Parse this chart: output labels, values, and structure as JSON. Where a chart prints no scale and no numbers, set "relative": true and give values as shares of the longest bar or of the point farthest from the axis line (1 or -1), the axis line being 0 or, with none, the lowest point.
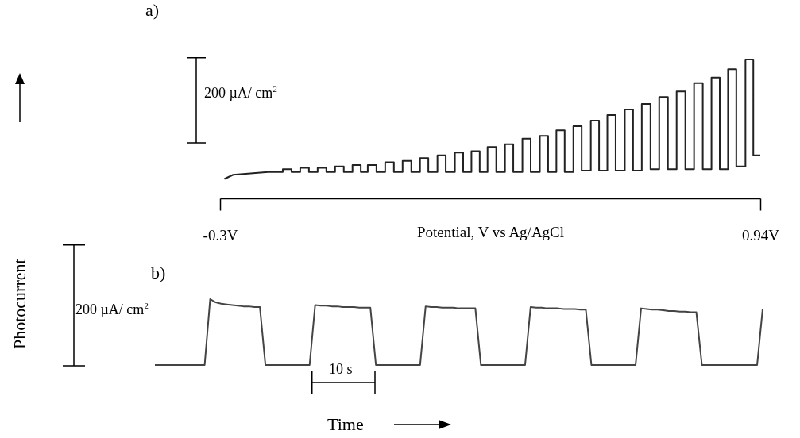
{
  "chart_data": [
    {
      "type": "line",
      "title": "a)",
      "xlabel": "Potential, V vs Ag/AgCl",
      "relative": true,
      "tick_labels": "x",
      "xlim": [
        -0.3,
        0.94
      ],
      "xticks": [
        {
          "value": -0.3,
          "label": "-0.3V"
        },
        {
          "value": 0.94,
          "label": "0.94V"
        }
      ],
      "annotations": [
        "200 µA/ cm$^{2}$"
      ],
      "x": [
        -0.29,
        -0.27,
        -0.23,
        -0.19,
        -0.156,
        -0.156,
        -0.136,
        -0.136,
        -0.116,
        -0.116,
        -0.096,
        -0.096,
        -0.076,
        -0.076,
        -0.056,
        -0.056,
        -0.036,
        -0.036,
        -0.016,
        -0.016,
        0.004,
        0.004,
        0.023,
        0.023,
        0.039,
        0.039,
        0.059,
        0.059,
        0.079,
        0.079,
        0.099,
        0.099,
        0.119,
        0.119,
        0.139,
        0.139,
        0.159,
        0.159,
        0.178,
        0.178,
        0.199,
        0.199,
        0.218,
        0.218,
        0.239,
        0.239,
        0.258,
        0.258,
        0.277,
        0.277,
        0.296,
        0.296,
        0.314,
        0.314,
        0.334,
        0.334,
        0.354,
        0.354,
        0.373,
        0.373,
        0.394,
        0.394,
        0.413,
        0.413,
        0.434,
        0.434,
        0.453,
        0.453,
        0.472,
        0.472,
        0.491,
        0.491,
        0.511,
        0.511,
        0.53,
        0.53,
        0.551,
        0.551,
        0.57,
        0.57,
        0.589,
        0.589,
        0.608,
        0.608,
        0.629,
        0.629,
        0.648,
        0.648,
        0.668,
        0.668,
        0.688,
        0.688,
        0.708,
        0.708,
        0.728,
        0.728,
        0.748,
        0.748,
        0.768,
        0.768,
        0.788,
        0.788,
        0.808,
        0.808,
        0.828,
        0.828,
        0.847,
        0.847,
        0.866,
        0.866,
        0.885,
        0.885,
        0.906,
        0.906,
        0.924,
        0.924,
        0.94
      ],
      "series": [
        {
          "color": "#222222",
          "values": [
            0.14,
            0.17,
            0.18,
            0.19,
            0.19,
            0.21,
            0.21,
            0.19,
            0.19,
            0.22,
            0.22,
            0.19,
            0.19,
            0.22,
            0.22,
            0.19,
            0.19,
            0.23,
            0.23,
            0.19,
            0.19,
            0.24,
            0.24,
            0.19,
            0.19,
            0.24,
            0.24,
            0.19,
            0.19,
            0.26,
            0.26,
            0.19,
            0.19,
            0.27,
            0.27,
            0.19,
            0.19,
            0.29,
            0.29,
            0.19,
            0.19,
            0.31,
            0.31,
            0.19,
            0.19,
            0.33,
            0.33,
            0.19,
            0.19,
            0.34,
            0.34,
            0.19,
            0.19,
            0.37,
            0.37,
            0.19,
            0.19,
            0.39,
            0.39,
            0.19,
            0.19,
            0.43,
            0.43,
            0.19,
            0.19,
            0.45,
            0.45,
            0.19,
            0.19,
            0.49,
            0.49,
            0.19,
            0.19,
            0.52,
            0.52,
            0.2,
            0.2,
            0.56,
            0.56,
            0.2,
            0.2,
            0.6,
            0.6,
            0.2,
            0.2,
            0.64,
            0.64,
            0.2,
            0.2,
            0.68,
            0.68,
            0.21,
            0.21,
            0.73,
            0.73,
            0.21,
            0.21,
            0.77,
            0.77,
            0.21,
            0.21,
            0.83,
            0.83,
            0.21,
            0.21,
            0.87,
            0.87,
            0.21,
            0.21,
            0.93,
            0.93,
            0.23,
            0.23,
            1,
            1,
            0.31,
            0.31
          ]
        }
      ]
    },
    {
      "type": "line",
      "title": "b)",
      "xlabel": "Time",
      "ylabel": "Photocurrent",
      "relative": true,
      "tick_labels": false,
      "annotations": [
        "200 µA/ cm$^{2}$",
        "10 s"
      ],
      "categories": [
        null,
        null,
        null,
        null,
        null,
        null,
        null,
        null,
        null,
        null,
        null,
        null,
        null,
        null,
        null,
        null,
        null,
        null,
        null,
        null,
        null,
        null,
        null,
        null,
        null,
        null,
        null,
        null,
        null,
        null,
        null,
        null,
        null,
        null,
        null,
        null,
        null,
        null,
        null,
        null,
        null,
        null,
        null,
        null,
        null,
        null,
        null,
        null,
        null,
        null,
        null,
        null,
        null,
        null,
        null,
        null,
        null,
        null,
        null,
        null,
        null,
        null,
        null,
        null,
        null,
        null,
        null,
        null,
        null,
        null,
        null,
        null,
        null,
        null,
        null,
        null,
        null,
        null,
        null,
        null,
        null,
        null,
        null,
        null,
        null,
        null,
        null,
        null,
        null,
        null,
        null,
        null,
        null,
        null,
        null,
        null,
        null,
        null,
        null,
        null,
        null,
        null,
        null,
        null,
        null,
        null,
        null,
        null,
        null,
        null,
        null
      ],
      "series": [
        {
          "color": "#444444",
          "values": [
            0,
            0,
            0,
            0,
            0,
            0,
            0,
            0,
            0,
            0,
            1,
            0.95,
            0.93,
            0.92,
            0.91,
            0.9,
            0.89,
            0.89,
            0.88,
            0.88,
            0,
            0,
            0,
            0,
            0,
            0,
            0,
            0,
            0,
            0.91,
            0.9,
            0.9,
            0.89,
            0.89,
            0.88,
            0.88,
            0.88,
            0.87,
            0.87,
            0.87,
            0,
            0,
            0,
            0,
            0,
            0,
            0,
            0,
            0,
            0.89,
            0.88,
            0.88,
            0.87,
            0.87,
            0.87,
            0.86,
            0.86,
            0.86,
            0.86,
            0,
            0,
            0,
            0,
            0,
            0,
            0,
            0,
            0,
            0.88,
            0.87,
            0.87,
            0.86,
            0.86,
            0.86,
            0.85,
            0.85,
            0.85,
            0.84,
            0.84,
            0,
            0,
            0,
            0,
            0,
            0,
            0,
            0,
            0,
            0.86,
            0.85,
            0.84,
            0.84,
            0.83,
            0.82,
            0.82,
            0.81,
            0.81,
            0.8,
            0.8,
            0,
            0,
            0,
            0,
            0,
            0,
            0,
            0,
            0,
            0,
            0,
            0.85
          ]
        }
      ]
    }
  ]
}
